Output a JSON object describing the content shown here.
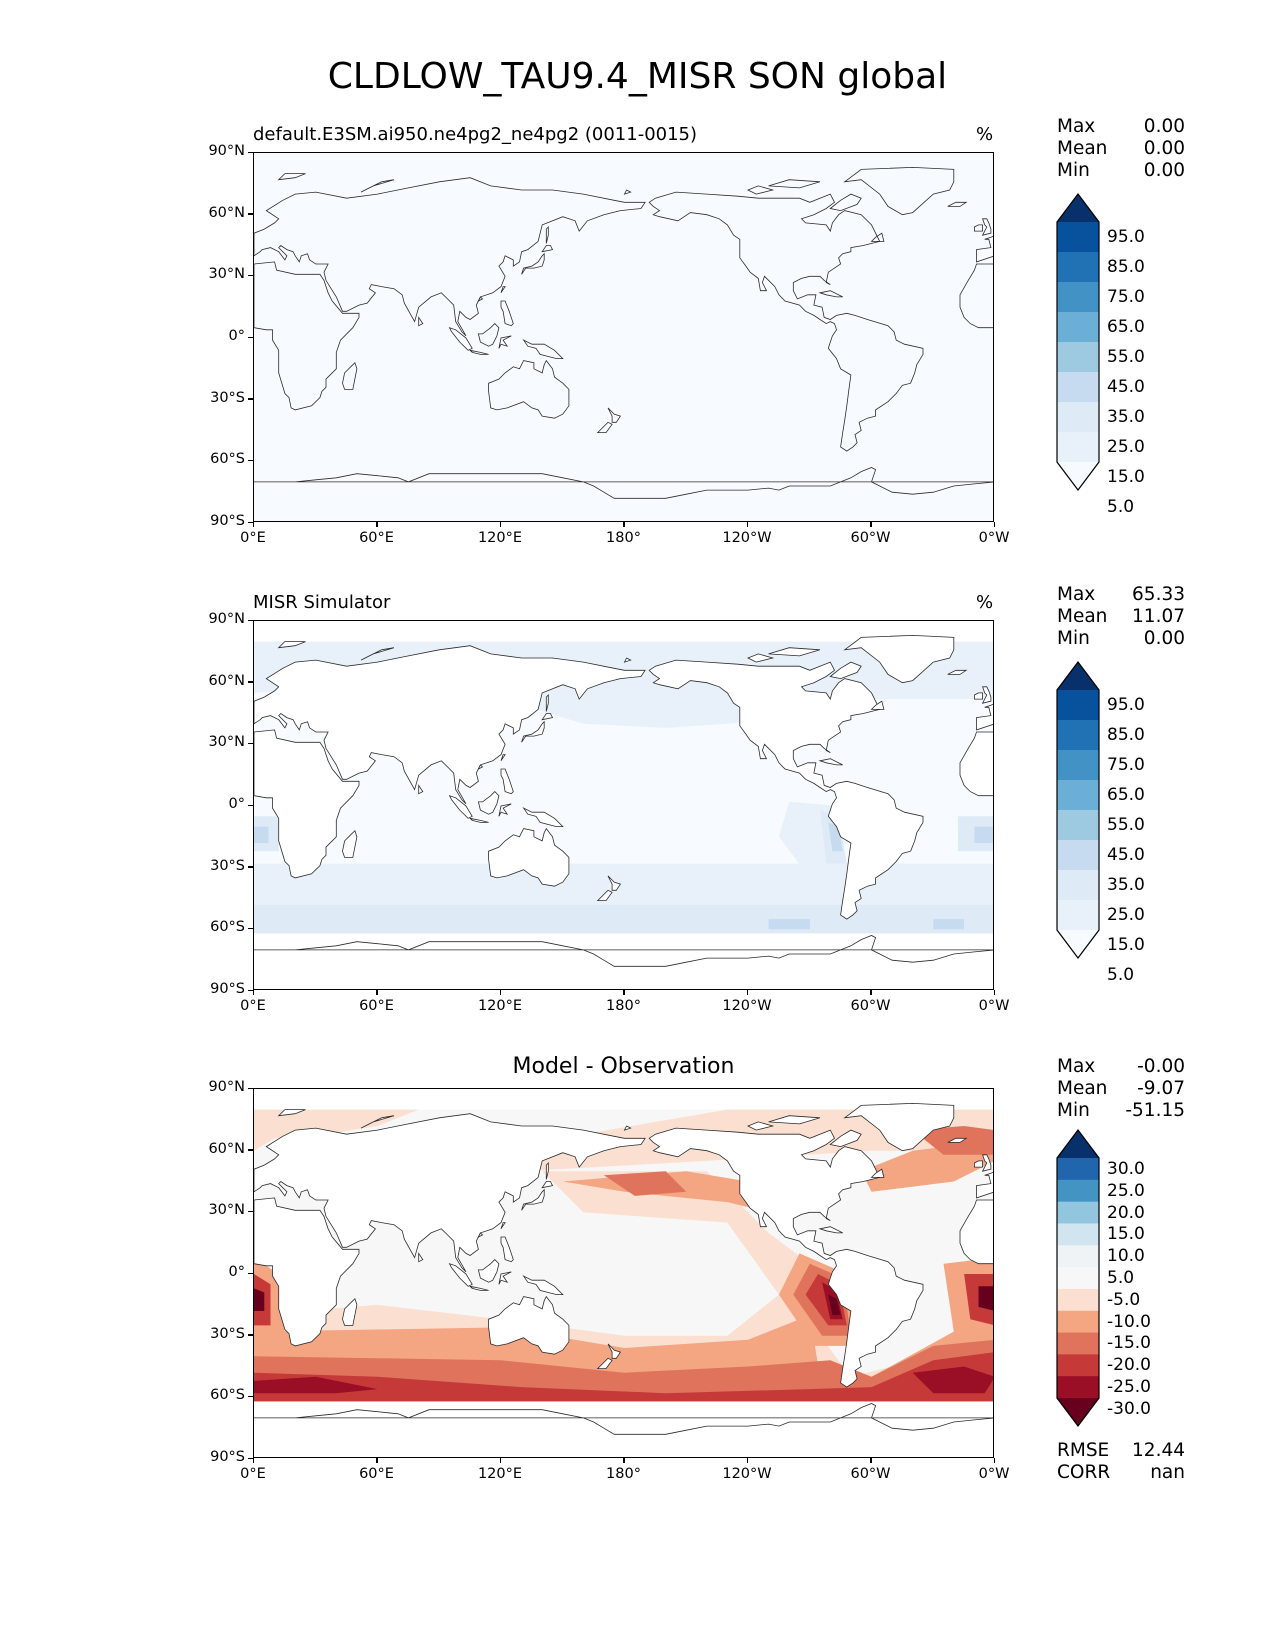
{
  "title": "CLDLOW_TAU9.4_MISR SON global",
  "axes": {
    "y_ticks": [
      "90°N",
      "60°N",
      "30°N",
      "0°",
      "30°S",
      "60°S",
      "90°S"
    ],
    "x_ticks": [
      "0°E",
      "60°E",
      "120°E",
      "180°",
      "120°W",
      "60°W",
      "0°W"
    ]
  },
  "panels": [
    {
      "id": "model",
      "title": "default.E3SM.ai950.ne4pg2_ne4pg2 (0011-0015)",
      "units": "%",
      "stats": [
        {
          "label": "Max",
          "value": "0.00"
        },
        {
          "label": "Mean",
          "value": "0.00"
        },
        {
          "label": "Min",
          "value": "0.00"
        }
      ],
      "colorbar": {
        "labels": [
          "95.0",
          "85.0",
          "75.0",
          "65.0",
          "55.0",
          "45.0",
          "35.0",
          "25.0",
          "15.0",
          "5.0"
        ],
        "colors": [
          "#08306b",
          "#08519c",
          "#2171b5",
          "#4292c6",
          "#6baed6",
          "#9ecae1",
          "#c6dbef",
          "#deebf7",
          "#e8f1fa",
          "#f7fbff"
        ]
      },
      "field_fill": "#f7fbff"
    },
    {
      "id": "obs",
      "title": "MISR Simulator",
      "units": "%",
      "stats": [
        {
          "label": "Max",
          "value": "65.33"
        },
        {
          "label": "Mean",
          "value": "11.07"
        },
        {
          "label": "Min",
          "value": "0.00"
        }
      ],
      "colorbar": {
        "labels": [
          "95.0",
          "85.0",
          "75.0",
          "65.0",
          "55.0",
          "45.0",
          "35.0",
          "25.0",
          "15.0",
          "5.0"
        ],
        "colors": [
          "#08306b",
          "#08519c",
          "#2171b5",
          "#4292c6",
          "#6baed6",
          "#9ecae1",
          "#c6dbef",
          "#deebf7",
          "#e8f1fa",
          "#f7fbff"
        ]
      }
    },
    {
      "id": "diff",
      "title": "Model - Observation",
      "units": "",
      "stats": [
        {
          "label": "Max",
          "value": "-0.00"
        },
        {
          "label": "Mean",
          "value": "-9.07"
        },
        {
          "label": "Min",
          "value": "-51.15"
        }
      ],
      "colorbar": {
        "labels": [
          "30.0",
          "25.0",
          "20.0",
          "15.0",
          "10.0",
          "5.0",
          "-5.0",
          "-10.0",
          "-15.0",
          "-20.0",
          "-25.0",
          "-30.0"
        ],
        "colors": [
          "#08306b",
          "#2166ac",
          "#4393c3",
          "#92c5de",
          "#d1e5f0",
          "#f0f3f6",
          "#f7f7f7",
          "#fbe0d2",
          "#f4a582",
          "#e0735c",
          "#c53a39",
          "#9a0f26",
          "#67001f"
        ]
      },
      "footer_stats": [
        {
          "label": "RMSE",
          "value": "12.44"
        },
        {
          "label": "CORR",
          "value": "nan"
        }
      ]
    }
  ]
}
